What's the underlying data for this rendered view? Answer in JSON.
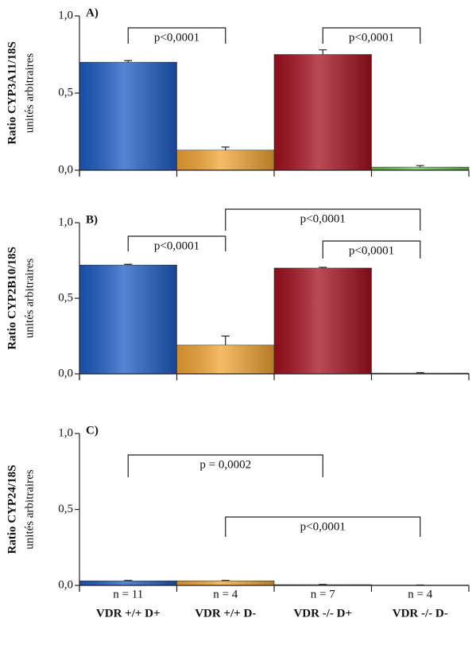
{
  "chart_data": [
    {
      "type": "bar",
      "panel": "A)",
      "ylabel": "Ratio CYP3A11/18S",
      "ylabel2": "unités arbitraires",
      "categories": [
        null,
        null,
        null,
        null
      ],
      "values": [
        0.7,
        0.13,
        0.75,
        0.02
      ],
      "errors": [
        0.01,
        0.02,
        0.03,
        0.01
      ],
      "colors": [
        "#1c5cc4",
        "#f2a534",
        "#a3101e",
        "#6cc050"
      ],
      "ylim": [
        0,
        1
      ],
      "yticks": [
        {
          "value": 0,
          "label": "0,0"
        },
        {
          "value": 0.5,
          "label": "0,5"
        },
        {
          "value": 1,
          "label": "1,0"
        }
      ],
      "annotations": [
        {
          "text": "p<0,0001",
          "from": 0,
          "to": 1
        },
        {
          "text": "p<0,0001",
          "from": 2,
          "to": 3
        }
      ]
    },
    {
      "type": "bar",
      "panel": "B)",
      "ylabel": "Ratio CYP2B10/18S",
      "ylabel2": "unités arbitraires",
      "categories": [
        null,
        null,
        null,
        null
      ],
      "values": [
        0.72,
        0.19,
        0.7,
        0.005
      ],
      "errors": [
        0.005,
        0.06,
        0.005,
        0.003
      ],
      "colors": [
        "#1c5cc4",
        "#f2a534",
        "#a3101e",
        "#6cc050"
      ],
      "ylim": [
        0,
        1
      ],
      "yticks": [
        {
          "value": 0,
          "label": "0,0"
        },
        {
          "value": 0.5,
          "label": "0,5"
        },
        {
          "value": 1,
          "label": "1,0"
        }
      ],
      "annotations": [
        {
          "text": "p<0,0001",
          "from": 0,
          "to": 1
        },
        {
          "text": "p<0,0001",
          "from": 1,
          "to": 3
        },
        {
          "text": "p<0,0001",
          "from": 2,
          "to": 3
        }
      ]
    },
    {
      "type": "bar",
      "panel": "C)",
      "ylabel": "Ratio CYP24/18S",
      "ylabel2": "unités arbitraires",
      "categories": [
        "VDR +/+ D+",
        "VDR +/+ D-",
        "VDR -/- D+",
        "VDR -/- D-"
      ],
      "n_labels": [
        "n = 11",
        "n = 4",
        "n = 7",
        "n = 4"
      ],
      "values": [
        0.03,
        0.03,
        0.005,
        0.002
      ],
      "errors": [
        0.003,
        0.003,
        0.002,
        0.001
      ],
      "colors": [
        "#1c5cc4",
        "#f2a534",
        "#a3101e",
        "#6cc050"
      ],
      "ylim": [
        0,
        1
      ],
      "yticks": [
        {
          "value": 0,
          "label": "0,0"
        },
        {
          "value": 0.5,
          "label": "0,5"
        },
        {
          "value": 1,
          "label": "1,0"
        }
      ],
      "annotations": [
        {
          "text": "p = 0,0002",
          "from": 0,
          "to": 2
        },
        {
          "text": "p<0,0001",
          "from": 1,
          "to": 3
        }
      ]
    }
  ]
}
